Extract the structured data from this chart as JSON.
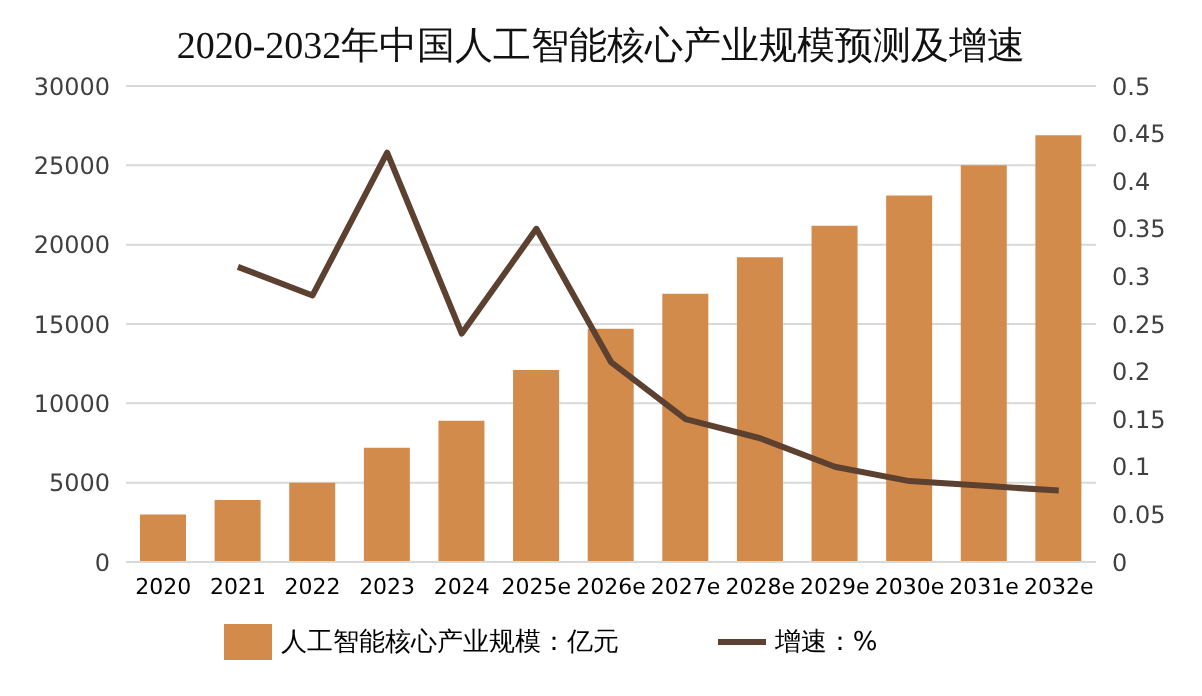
{
  "chart_data": {
    "type": "bar",
    "title": "2020-2032年中国人工智能核心产业规模预测及增速",
    "categories": [
      "2020",
      "2021",
      "2022",
      "2023",
      "2024",
      "2025e",
      "2026e",
      "2027e",
      "2028e",
      "2029e",
      "2030e",
      "2031e",
      "2032e"
    ],
    "series": [
      {
        "name": "人工智能核心产业规模：亿元",
        "color": "#d38b4c",
        "values": [
          3000,
          3900,
          5000,
          7200,
          8900,
          12100,
          14700,
          16900,
          19200,
          21200,
          23100,
          25000,
          26900
        ]
      },
      {
        "name": "增速：%",
        "type": "line",
        "axis": "y2",
        "color": "#5c4030",
        "values": [
          null,
          0.31,
          0.28,
          0.43,
          0.24,
          0.35,
          0.21,
          0.15,
          0.13,
          0.1,
          0.085,
          0.08,
          0.075
        ]
      }
    ],
    "ylim": [
      0,
      30000
    ],
    "yticks": [
      0,
      5000,
      10000,
      15000,
      20000,
      25000,
      30000
    ],
    "y2lim": [
      0,
      0.5
    ],
    "y2ticks": [
      0,
      0.05,
      0.1,
      0.15,
      0.2,
      0.25,
      0.3,
      0.35,
      0.4,
      0.45,
      0.5
    ],
    "grid": "y",
    "legend": "bottom",
    "marker": "none",
    "line_style": "solid"
  }
}
